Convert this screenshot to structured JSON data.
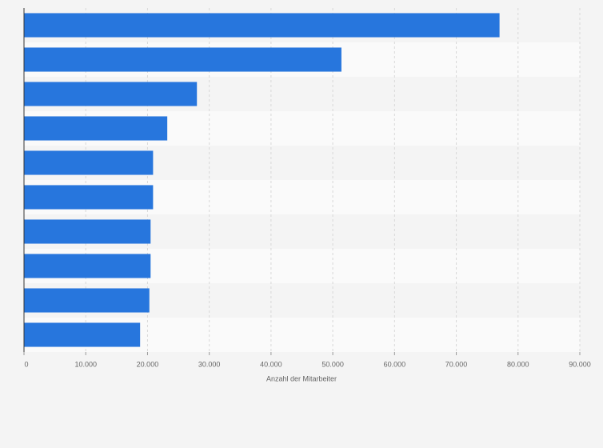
{
  "chart_data": {
    "type": "bar",
    "orientation": "horizontal",
    "categories": [
      null,
      null,
      null,
      null,
      null,
      null,
      null,
      null,
      null,
      null
    ],
    "values": [
      77000,
      51400,
      28000,
      23200,
      20900,
      20900,
      20500,
      20500,
      20300,
      18800
    ],
    "color": "#2776dd",
    "xlabel": "Anzahl der Mitarbeiter",
    "xlim": [
      0,
      90000
    ],
    "xticks": [
      0,
      {
        "value": 10000,
        "label": "10.000"
      },
      {
        "value": 20000,
        "label": "20.000"
      },
      {
        "value": 30000,
        "label": "30.000"
      },
      {
        "value": 40000,
        "label": "40.000"
      },
      {
        "value": 50000,
        "label": "50.000"
      },
      {
        "value": 60000,
        "label": "60.000"
      },
      {
        "value": 70000,
        "label": "70.000"
      },
      {
        "value": 80000,
        "label": "80.000"
      },
      {
        "value": 90000,
        "label": "90.000"
      }
    ],
    "grid": true
  }
}
